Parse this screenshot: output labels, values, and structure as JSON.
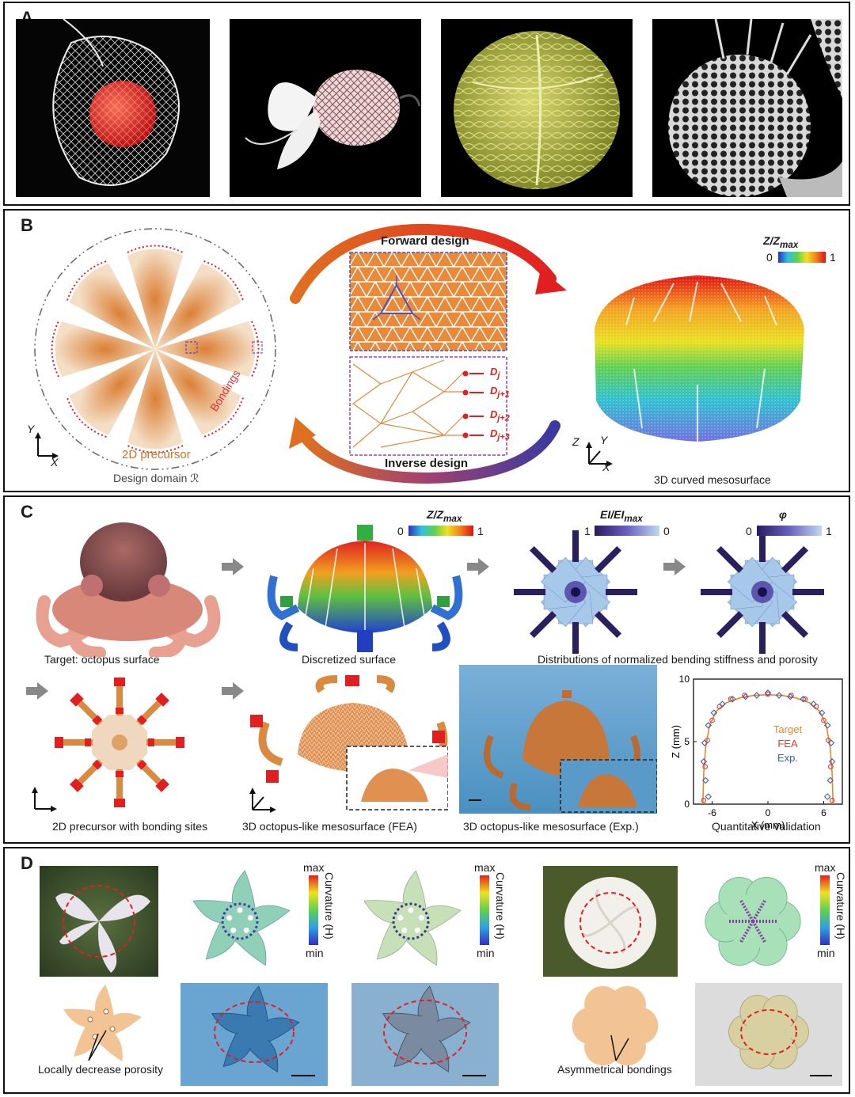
{
  "panels": {
    "a": {
      "label": "A"
    },
    "b": {
      "label": "B",
      "forward": "Forward design",
      "inverse": "Inverse design",
      "precursor": "2D precursor",
      "bondings": "Bondings",
      "domain": "Design domain ℛ",
      "mesosurface": "3D curved mesosurface",
      "colorbar_title": "Z/Z",
      "colorbar_sub": "max",
      "cb_min": "0",
      "cb_max": "1",
      "nodes": [
        "D",
        "D",
        "D",
        "D"
      ],
      "node_subs": [
        "j",
        "j+1",
        "j+2",
        "j+3"
      ],
      "axis_x": "X",
      "axis_y": "Y",
      "axis_z": "Z"
    },
    "c": {
      "label": "C",
      "cap_target": "Target: octopus surface",
      "cap_discretized": "Discretized surface",
      "cap_distributions": "Distributions of normalized bending stiffness and porosity",
      "cap_precursor": "2D precursor with bonding sites",
      "cap_fea": "3D octopus-like mesosurface (FEA)",
      "cap_exp": "3D octopus-like mesosurface (Exp.)",
      "cap_validation": "Quantitative validation",
      "cb1_title": "Z/Z",
      "cb1_sub": "max",
      "cb1_min": "0",
      "cb1_max": "1",
      "cb2_title": "EI/EI",
      "cb2_sub": "max",
      "cb2_left": "1",
      "cb2_right": "0",
      "cb3_title": "φ",
      "cb3_left": "0",
      "cb3_right": "1"
    },
    "d": {
      "label": "D",
      "cb_max": "max",
      "cb_min": "min",
      "cb_label": "Curvature (H)",
      "porosity_text": "Locally decrease porosity",
      "bondings_text": "Asymmetrical bondings"
    }
  },
  "chart_data": {
    "type": "scatter",
    "xlabel": "X (mm)",
    "ylabel": "Z (mm)",
    "xlim": [
      -8,
      8
    ],
    "ylim": [
      0,
      10
    ],
    "xticks": [
      "-6",
      "0",
      "6"
    ],
    "yticks": [
      "0",
      "5",
      "10"
    ],
    "legend": [
      "Target",
      "FEA",
      "Exp."
    ],
    "legend_placement": "center",
    "colors": {
      "target": "#e8862c",
      "fea": "#e04030",
      "exp": "#3a5fb0"
    },
    "series": [
      {
        "name": "Target",
        "x": [
          -7.0,
          -6.9,
          -6.7,
          -6.3,
          -5.6,
          -4.5,
          -3.0,
          -1.5,
          0.0,
          1.5,
          3.0,
          4.5,
          5.6,
          6.3,
          6.7,
          6.9,
          7.0
        ],
        "y": [
          0.0,
          2.5,
          4.5,
          6.2,
          7.4,
          8.1,
          8.5,
          8.7,
          8.75,
          8.7,
          8.5,
          8.1,
          7.4,
          6.2,
          4.5,
          2.5,
          0.0
        ]
      },
      {
        "name": "FEA",
        "x": [
          -6.9,
          -6.75,
          -6.5,
          -6.0,
          -5.2,
          -4.0,
          -2.5,
          0.0,
          2.5,
          4.0,
          5.2,
          6.0,
          6.5,
          6.75,
          6.9
        ],
        "y": [
          0.3,
          3.0,
          5.1,
          6.7,
          7.8,
          8.4,
          8.7,
          8.8,
          8.7,
          8.4,
          7.8,
          6.7,
          5.1,
          3.0,
          0.3
        ]
      },
      {
        "name": "Exp.",
        "x": [
          -6.4,
          -6.7,
          -6.9,
          -6.8,
          -6.4,
          -5.8,
          -4.9,
          -3.8,
          -2.4,
          -1.2,
          0.0,
          1.2,
          2.4,
          3.8,
          4.9,
          5.8,
          6.4,
          6.8,
          6.9,
          6.7,
          6.4
        ],
        "y": [
          0.6,
          1.9,
          3.4,
          4.9,
          6.3,
          7.3,
          8.0,
          8.4,
          8.6,
          8.7,
          8.9,
          8.7,
          8.6,
          8.4,
          8.0,
          7.3,
          6.3,
          4.9,
          3.4,
          1.9,
          0.6
        ]
      }
    ]
  }
}
